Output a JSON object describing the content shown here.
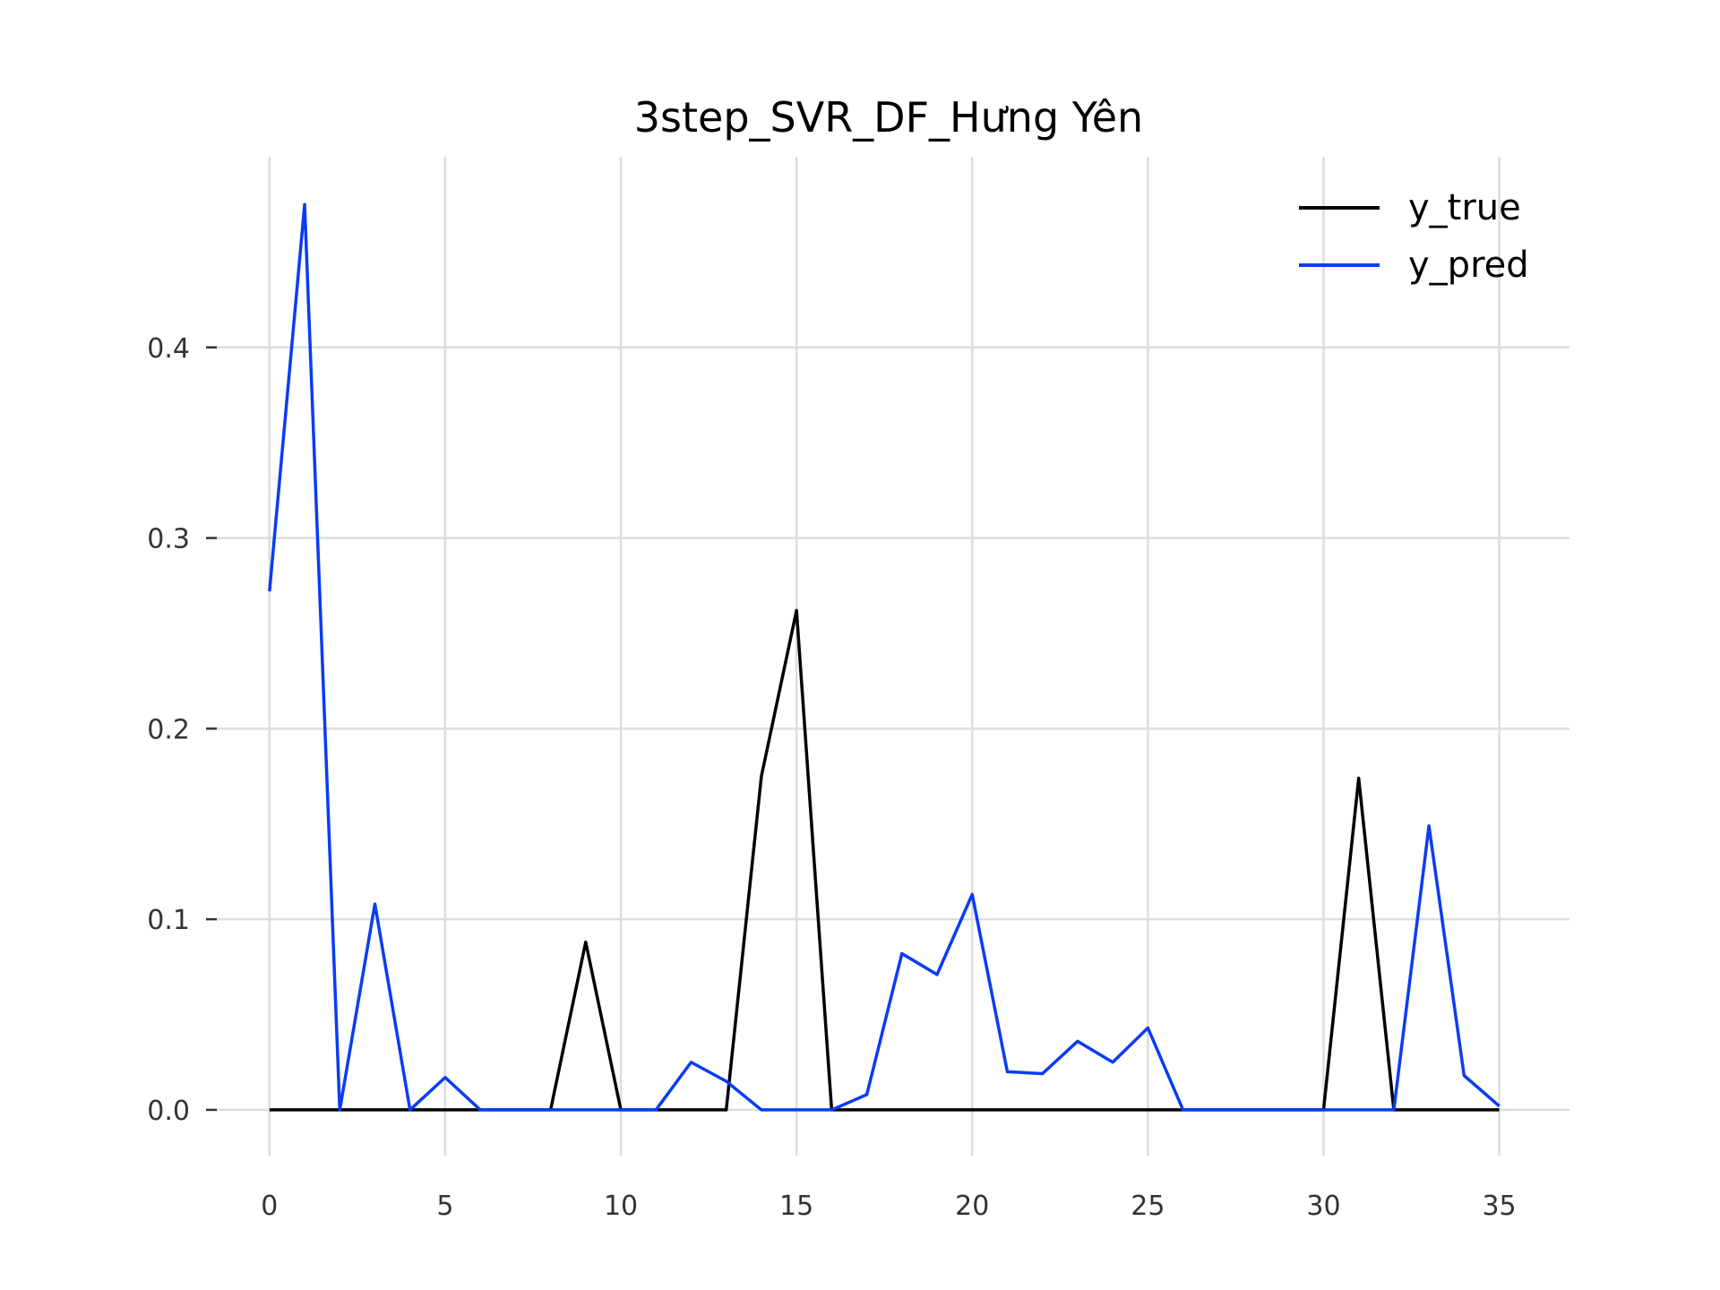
{
  "chart_data": {
    "type": "line",
    "title": "3step_SVR_DF_Hưng Yên",
    "xlabel": "",
    "ylabel": "",
    "x": [
      0,
      1,
      2,
      3,
      4,
      5,
      6,
      7,
      8,
      9,
      10,
      11,
      12,
      13,
      14,
      15,
      16,
      17,
      18,
      19,
      20,
      21,
      22,
      23,
      24,
      25,
      26,
      27,
      28,
      29,
      30,
      31,
      32,
      33,
      34,
      35
    ],
    "xlim": [
      -1.5,
      37
    ],
    "ylim": [
      -0.024,
      0.5
    ],
    "xticks": [
      0,
      5,
      10,
      15,
      20,
      25,
      30,
      35
    ],
    "xtick_labels": [
      "0",
      "5",
      "10",
      "15",
      "20",
      "25",
      "30",
      "35"
    ],
    "yticks": [
      0.0,
      0.1,
      0.2,
      0.3,
      0.4
    ],
    "ytick_labels": [
      "0.0",
      "0.1",
      "0.2",
      "0.3",
      "0.4"
    ],
    "grid": true,
    "legend_position": "top-right",
    "series": [
      {
        "name": "y_true",
        "color": "#000000",
        "values": [
          0,
          0,
          0,
          0,
          0,
          0,
          0,
          0,
          0,
          0.088,
          0,
          0,
          0,
          0,
          0.175,
          0.262,
          0,
          0,
          0,
          0,
          0,
          0,
          0,
          0,
          0,
          0,
          0,
          0,
          0,
          0,
          0,
          0.174,
          0,
          0,
          0,
          0
        ]
      },
      {
        "name": "y_pred",
        "color": "#0a3cf5",
        "values": [
          0.272,
          0.475,
          0,
          0.108,
          0,
          0.017,
          0,
          0,
          0,
          0,
          0,
          0,
          0.025,
          0.015,
          0,
          0,
          0,
          0.008,
          0.082,
          0.071,
          0.113,
          0.02,
          0.019,
          0.036,
          0.025,
          0.043,
          0,
          0,
          0,
          0,
          0,
          0,
          0,
          0.149,
          0.018,
          0.002
        ]
      }
    ]
  }
}
